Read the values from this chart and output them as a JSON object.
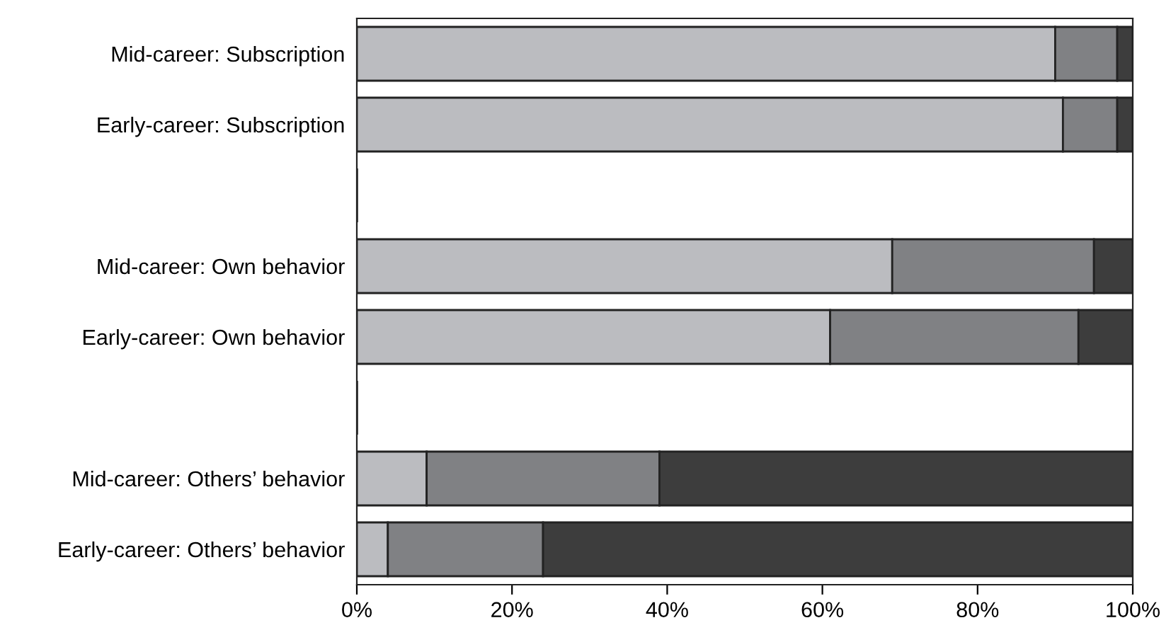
{
  "chart_data": {
    "type": "bar",
    "orientation": "horizontal",
    "stacked": true,
    "categories": [
      "Mid-career: Subscription",
      "Early-career: Subscription",
      null,
      "Mid-career: Own behavior",
      "Early-career: Own behavior",
      null,
      "Mid-career: Others’ behavior",
      "Early-career: Others’ behavior"
    ],
    "series": [
      {
        "color": "#bbbcc0",
        "values": [
          90,
          91,
          null,
          69,
          61,
          null,
          9,
          4
        ]
      },
      {
        "color": "#808184",
        "values": [
          8,
          7,
          null,
          26,
          32,
          null,
          30,
          20
        ]
      },
      {
        "color": "#3d3d3d",
        "values": [
          2,
          2,
          null,
          5,
          7,
          null,
          61,
          76
        ]
      }
    ],
    "xlim": [
      0,
      100
    ],
    "xticks": [
      {
        "value": 0,
        "label": "0%"
      },
      {
        "value": 20,
        "label": "20%"
      },
      {
        "value": 40,
        "label": "40%"
      },
      {
        "value": 60,
        "label": "60%"
      },
      {
        "value": 80,
        "label": "80%"
      },
      {
        "value": 100,
        "label": "100%"
      }
    ],
    "grid": false,
    "legend": false
  }
}
